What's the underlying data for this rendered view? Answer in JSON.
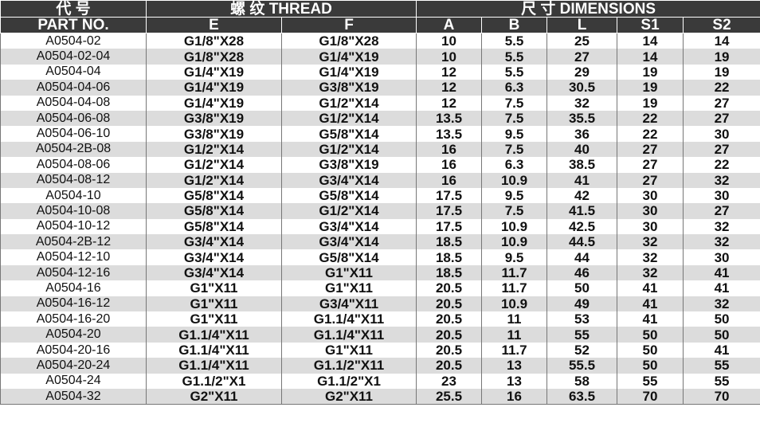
{
  "header": {
    "row1": [
      "代 号",
      "螺 纹 THREAD",
      "尺 寸 DIMENSIONS"
    ],
    "row2": [
      "PART NO.",
      "E",
      "F",
      "A",
      "B",
      "L",
      "S1",
      "S2"
    ]
  },
  "table": {
    "rows": [
      [
        "A0504-02",
        "G1/8\"X28",
        "G1/8\"X28",
        "10",
        "5.5",
        "25",
        "14",
        "14"
      ],
      [
        "A0504-02-04",
        "G1/8\"X28",
        "G1/4\"X19",
        "10",
        "5.5",
        "27",
        "14",
        "19"
      ],
      [
        "A0504-04",
        "G1/4\"X19",
        "G1/4\"X19",
        "12",
        "5.5",
        "29",
        "19",
        "19"
      ],
      [
        "A0504-04-06",
        "G1/4\"X19",
        "G3/8\"X19",
        "12",
        "6.3",
        "30.5",
        "19",
        "22"
      ],
      [
        "A0504-04-08",
        "G1/4\"X19",
        "G1/2\"X14",
        "12",
        "7.5",
        "32",
        "19",
        "27"
      ],
      [
        "A0504-06-08",
        "G3/8\"X19",
        "G1/2\"X14",
        "13.5",
        "7.5",
        "35.5",
        "22",
        "27"
      ],
      [
        "A0504-06-10",
        "G3/8\"X19",
        "G5/8\"X14",
        "13.5",
        "9.5",
        "36",
        "22",
        "30"
      ],
      [
        "A0504-2B-08",
        "G1/2\"X14",
        "G1/2\"X14",
        "16",
        "7.5",
        "40",
        "27",
        "27"
      ],
      [
        "A0504-08-06",
        "G1/2\"X14",
        "G3/8\"X19",
        "16",
        "6.3",
        "38.5",
        "27",
        "22"
      ],
      [
        "A0504-08-12",
        "G1/2\"X14",
        "G3/4\"X14",
        "16",
        "10.9",
        "41",
        "27",
        "32"
      ],
      [
        "A0504-10",
        "G5/8\"X14",
        "G5/8\"X14",
        "17.5",
        "9.5",
        "42",
        "30",
        "30"
      ],
      [
        "A0504-10-08",
        "G5/8\"X14",
        "G1/2\"X14",
        "17.5",
        "7.5",
        "41.5",
        "30",
        "27"
      ],
      [
        "A0504-10-12",
        "G5/8\"X14",
        "G3/4\"X14",
        "17.5",
        "10.9",
        "42.5",
        "30",
        "32"
      ],
      [
        "A0504-2B-12",
        "G3/4\"X14",
        "G3/4\"X14",
        "18.5",
        "10.9",
        "44.5",
        "32",
        "32"
      ],
      [
        "A0504-12-10",
        "G3/4\"X14",
        "G5/8\"X14",
        "18.5",
        "9.5",
        "44",
        "32",
        "30"
      ],
      [
        "A0504-12-16",
        "G3/4\"X14",
        "G1\"X11",
        "18.5",
        "11.7",
        "46",
        "32",
        "41"
      ],
      [
        "A0504-16",
        "G1\"X11",
        "G1\"X11",
        "20.5",
        "11.7",
        "50",
        "41",
        "41"
      ],
      [
        "A0504-16-12",
        "G1\"X11",
        "G3/4\"X11",
        "20.5",
        "10.9",
        "49",
        "41",
        "32"
      ],
      [
        "A0504-16-20",
        "G1\"X11",
        "G1.1/4\"X11",
        "20.5",
        "11",
        "53",
        "41",
        "50"
      ],
      [
        "A0504-20",
        "G1.1/4\"X11",
        "G1.1/4\"X11",
        "20.5",
        "11",
        "55",
        "50",
        "50"
      ],
      [
        "A0504-20-16",
        "G1.1/4\"X11",
        "G1\"X11",
        "20.5",
        "11.7",
        "52",
        "50",
        "41"
      ],
      [
        "A0504-20-24",
        "G1.1/4\"X11",
        "G1.1/2\"X11",
        "20.5",
        "13",
        "55.5",
        "50",
        "55"
      ],
      [
        "A0504-24",
        "G1.1/2\"X1",
        "G1.1/2\"X1",
        "23",
        "13",
        "58",
        "55",
        "55"
      ],
      [
        "A0504-32",
        "G2\"X11",
        "G2\"X11",
        "25.5",
        "16",
        "63.5",
        "70",
        "70"
      ]
    ]
  }
}
